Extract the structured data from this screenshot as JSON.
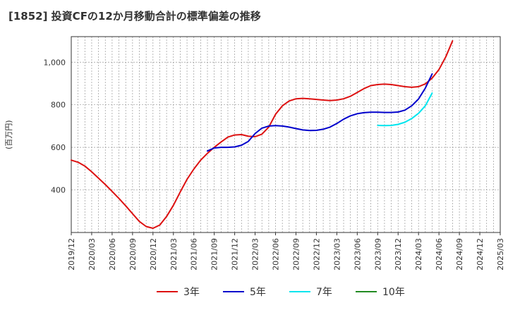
{
  "chart_data": {
    "type": "line",
    "title": "[1852]  投資CFの12か月移動合計の標準偏差の推移",
    "ylabel": "(百万円)",
    "xlabel": "",
    "ylim": [
      200,
      1120
    ],
    "yticks": [
      400,
      600,
      800,
      1000
    ],
    "ytick_labels": [
      "400",
      "600",
      "800",
      "1,000"
    ],
    "x_start": "2019-12",
    "x_end": "2025-03",
    "xtick_labels": [
      "2019/12",
      "2020/03",
      "2020/06",
      "2020/09",
      "2020/12",
      "2021/03",
      "2021/06",
      "2021/09",
      "2021/12",
      "2022/03",
      "2022/06",
      "2022/09",
      "2022/12",
      "2023/03",
      "2023/06",
      "2023/09",
      "2023/12",
      "2024/03",
      "2024/06",
      "2024/09",
      "2024/12",
      "2025/03"
    ],
    "grid": true,
    "legend_position": "bottom",
    "series": [
      {
        "name": "3年",
        "color": "#dd1111",
        "start": "2019-12",
        "values": [
          540,
          530,
          512,
          485,
          455,
          425,
          393,
          360,
          325,
          288,
          252,
          228,
          220,
          235,
          275,
          328,
          390,
          450,
          498,
          540,
          572,
          600,
          625,
          648,
          658,
          660,
          652,
          650,
          662,
          695,
          755,
          795,
          818,
          828,
          830,
          828,
          825,
          822,
          820,
          822,
          828,
          840,
          858,
          876,
          890,
          895,
          897,
          895,
          890,
          885,
          882,
          885,
          898,
          925,
          965,
          1025,
          1100
        ]
      },
      {
        "name": "5年",
        "color": "#0000cc",
        "start": "2021-08",
        "values": [
          583,
          597,
          600,
          600,
          602,
          610,
          628,
          665,
          690,
          700,
          702,
          700,
          695,
          688,
          682,
          679,
          680,
          685,
          695,
          712,
          732,
          748,
          758,
          763,
          765,
          765,
          764,
          764,
          766,
          775,
          795,
          827,
          878,
          945
        ]
      },
      {
        "name": "7年",
        "color": "#00e5ee",
        "start": "2023-09",
        "values": [
          703,
          702,
          703,
          708,
          718,
          735,
          760,
          795,
          855
        ]
      },
      {
        "name": "10年",
        "color": "#228b22",
        "start": "2024-03",
        "values": []
      }
    ]
  }
}
